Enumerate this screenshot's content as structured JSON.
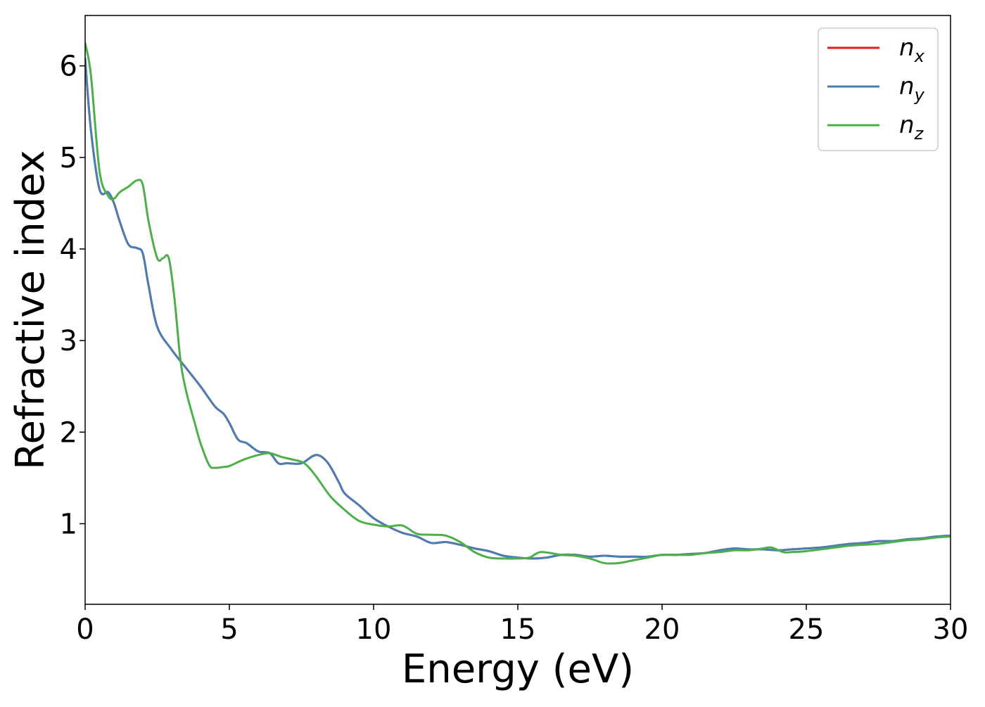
{
  "chart_data": {
    "type": "line",
    "title": "",
    "xlabel": "Energy (eV)",
    "ylabel": "Refractive index",
    "xlim": [
      0,
      30
    ],
    "ylim": [
      0.12,
      6.55
    ],
    "xticks": [
      0,
      5,
      10,
      15,
      20,
      25,
      30
    ],
    "yticks": [
      1,
      2,
      3,
      4,
      5,
      6
    ],
    "grid": false,
    "legend_position": "top-right",
    "series": [
      {
        "name": "n",
        "subscript": "x",
        "color": "#e41a1c",
        "x": [
          0,
          0.2,
          0.5,
          0.8,
          1.0,
          1.2,
          1.5,
          1.8,
          2.0,
          2.2,
          2.5,
          3.0,
          3.5,
          4.0,
          4.5,
          4.8,
          5.0,
          5.3,
          5.6,
          6.0,
          6.4,
          6.7,
          7.0,
          7.5,
          8.0,
          8.4,
          8.8,
          9.0,
          9.5,
          10.0,
          10.5,
          11.0,
          11.5,
          12.0,
          12.5,
          13.0,
          13.5,
          14.0,
          14.5,
          15.0,
          15.5,
          16.0,
          16.5,
          17.0,
          17.5,
          18.0,
          18.5,
          19.0,
          19.5,
          20.0,
          20.5,
          21.0,
          21.5,
          22.0,
          22.5,
          23.0,
          23.5,
          24.0,
          24.5,
          25.0,
          25.5,
          26.0,
          26.5,
          27.0,
          27.5,
          28.0,
          28.5,
          29.0,
          29.5,
          30.0
        ],
        "values": [
          6.08,
          5.3,
          4.65,
          4.62,
          4.5,
          4.3,
          4.05,
          4.01,
          3.95,
          3.6,
          3.15,
          2.9,
          2.7,
          2.5,
          2.28,
          2.2,
          2.1,
          1.92,
          1.88,
          1.79,
          1.77,
          1.66,
          1.66,
          1.66,
          1.75,
          1.67,
          1.45,
          1.33,
          1.2,
          1.06,
          0.97,
          0.9,
          0.86,
          0.79,
          0.8,
          0.77,
          0.73,
          0.7,
          0.65,
          0.63,
          0.62,
          0.63,
          0.66,
          0.66,
          0.64,
          0.65,
          0.64,
          0.64,
          0.64,
          0.66,
          0.66,
          0.67,
          0.68,
          0.71,
          0.73,
          0.72,
          0.72,
          0.71,
          0.72,
          0.73,
          0.74,
          0.76,
          0.78,
          0.79,
          0.81,
          0.81,
          0.83,
          0.84,
          0.86,
          0.87
        ]
      },
      {
        "name": "n",
        "subscript": "y",
        "color": "#4a7fb3",
        "x": [
          0,
          0.2,
          0.5,
          0.8,
          1.0,
          1.2,
          1.5,
          1.8,
          2.0,
          2.2,
          2.5,
          3.0,
          3.5,
          4.0,
          4.5,
          4.8,
          5.0,
          5.3,
          5.6,
          6.0,
          6.4,
          6.7,
          7.0,
          7.5,
          8.0,
          8.4,
          8.8,
          9.0,
          9.5,
          10.0,
          10.5,
          11.0,
          11.5,
          12.0,
          12.5,
          13.0,
          13.5,
          14.0,
          14.5,
          15.0,
          15.5,
          16.0,
          16.5,
          17.0,
          17.5,
          18.0,
          18.5,
          19.0,
          19.5,
          20.0,
          20.5,
          21.0,
          21.5,
          22.0,
          22.5,
          23.0,
          23.5,
          24.0,
          24.5,
          25.0,
          25.5,
          26.0,
          26.5,
          27.0,
          27.5,
          28.0,
          28.5,
          29.0,
          29.5,
          30.0
        ],
        "values": [
          6.08,
          5.3,
          4.65,
          4.62,
          4.5,
          4.3,
          4.05,
          4.01,
          3.95,
          3.6,
          3.15,
          2.9,
          2.7,
          2.5,
          2.28,
          2.2,
          2.1,
          1.92,
          1.88,
          1.79,
          1.77,
          1.66,
          1.66,
          1.66,
          1.75,
          1.67,
          1.45,
          1.33,
          1.2,
          1.06,
          0.97,
          0.9,
          0.86,
          0.79,
          0.8,
          0.77,
          0.73,
          0.7,
          0.65,
          0.63,
          0.62,
          0.63,
          0.66,
          0.66,
          0.64,
          0.65,
          0.64,
          0.64,
          0.64,
          0.66,
          0.66,
          0.67,
          0.68,
          0.71,
          0.73,
          0.72,
          0.72,
          0.71,
          0.72,
          0.73,
          0.74,
          0.76,
          0.78,
          0.79,
          0.81,
          0.81,
          0.83,
          0.84,
          0.86,
          0.87
        ]
      },
      {
        "name": "n",
        "subscript": "z",
        "color": "#4daf4a",
        "x": [
          0,
          0.2,
          0.5,
          0.8,
          1.0,
          1.2,
          1.5,
          1.8,
          2.0,
          2.2,
          2.5,
          2.7,
          2.9,
          3.1,
          3.3,
          3.5,
          3.8,
          4.0,
          4.3,
          4.5,
          4.8,
          5.0,
          5.5,
          6.0,
          6.4,
          6.8,
          7.2,
          7.6,
          8.0,
          8.5,
          9.0,
          9.5,
          10.0,
          10.5,
          11.0,
          11.5,
          12.0,
          12.5,
          13.0,
          13.5,
          14.0,
          14.5,
          15.0,
          15.4,
          15.8,
          16.5,
          17.0,
          17.5,
          18.0,
          18.5,
          19.0,
          19.5,
          20.0,
          20.5,
          21.0,
          21.5,
          22.0,
          22.5,
          23.0,
          23.5,
          23.8,
          24.2,
          24.5,
          25.0,
          25.5,
          26.0,
          26.5,
          27.0,
          27.5,
          28.0,
          28.5,
          29.0,
          29.5,
          30.0
        ],
        "values": [
          6.25,
          5.9,
          4.85,
          4.58,
          4.55,
          4.62,
          4.68,
          4.75,
          4.7,
          4.3,
          3.9,
          3.9,
          3.9,
          3.45,
          2.8,
          2.45,
          2.1,
          1.88,
          1.64,
          1.61,
          1.62,
          1.63,
          1.7,
          1.75,
          1.77,
          1.73,
          1.7,
          1.66,
          1.52,
          1.3,
          1.15,
          1.03,
          0.99,
          0.97,
          0.98,
          0.89,
          0.88,
          0.87,
          0.8,
          0.69,
          0.63,
          0.62,
          0.62,
          0.63,
          0.69,
          0.66,
          0.65,
          0.62,
          0.57,
          0.57,
          0.6,
          0.63,
          0.66,
          0.66,
          0.66,
          0.68,
          0.69,
          0.71,
          0.71,
          0.73,
          0.74,
          0.69,
          0.69,
          0.7,
          0.72,
          0.74,
          0.76,
          0.77,
          0.78,
          0.8,
          0.82,
          0.83,
          0.85,
          0.86
        ]
      }
    ]
  }
}
